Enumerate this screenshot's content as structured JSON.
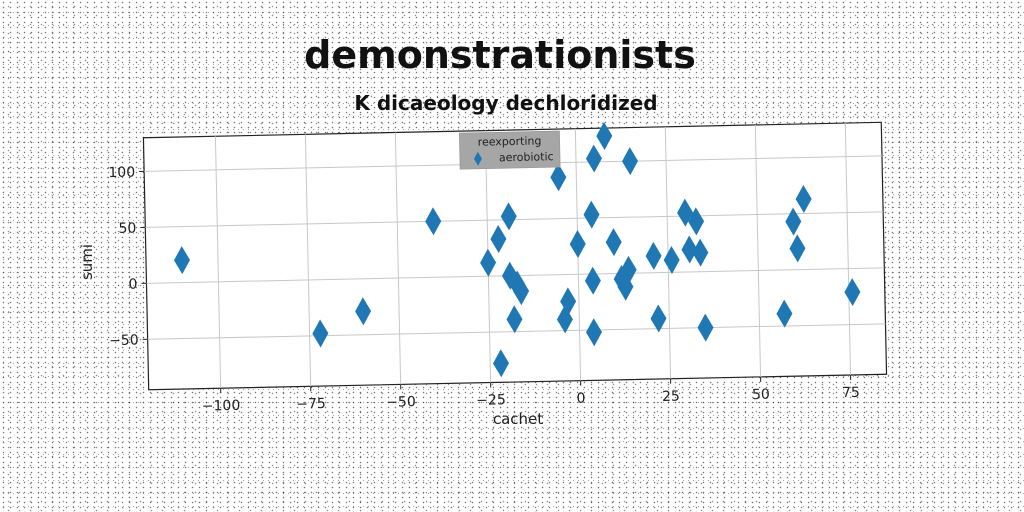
{
  "chart_data": {
    "type": "scatter",
    "title": "demonstrationists",
    "subtitle": "K dicaeology dechloridized",
    "xlabel": "cachet",
    "ylabel": "sumi",
    "xlim": [
      -120,
      85
    ],
    "ylim": [
      -95,
      130
    ],
    "xticks": [
      -100,
      -75,
      -50,
      -25,
      0,
      25,
      50,
      75
    ],
    "yticks": [
      -50,
      0,
      50,
      100
    ],
    "xtick_labels": [
      "−100",
      "−75",
      "−50",
      "−25",
      "0",
      "25",
      "50",
      "75"
    ],
    "ytick_labels": [
      "−50",
      "0",
      "50",
      "100"
    ],
    "grid": true,
    "legend": {
      "title": "reexporting",
      "placement": "top-center"
    },
    "marker": "thin-diamond",
    "series": [
      {
        "name": "aerobiotic",
        "color": "#1f77b4",
        "points": [
          [
            -110,
            20
          ],
          [
            -72,
            -48
          ],
          [
            -60,
            -29
          ],
          [
            -40,
            50
          ],
          [
            -25,
            12
          ],
          [
            -22,
            33
          ],
          [
            -22,
            -78
          ],
          [
            -19,
            53
          ],
          [
            -19,
            0
          ],
          [
            -18,
            -39
          ],
          [
            -17,
            -8
          ],
          [
            -16,
            -14
          ],
          [
            -5,
            87
          ],
          [
            -4,
            -40
          ],
          [
            -3,
            -24
          ],
          [
            0,
            27
          ],
          [
            4,
            -52
          ],
          [
            4,
            -6
          ],
          [
            4,
            53
          ],
          [
            5,
            103
          ],
          [
            8,
            123
          ],
          [
            10,
            28
          ],
          [
            12,
            -5
          ],
          [
            13,
            -12
          ],
          [
            14,
            3
          ],
          [
            15,
            100
          ],
          [
            21,
            15
          ],
          [
            22,
            -41
          ],
          [
            26,
            11
          ],
          [
            30,
            53
          ],
          [
            31,
            20
          ],
          [
            33,
            45
          ],
          [
            34,
            17
          ],
          [
            35,
            -50
          ],
          [
            57,
            -39
          ],
          [
            60,
            43
          ],
          [
            61,
            19
          ],
          [
            63,
            63
          ],
          [
            76,
            -21
          ]
        ]
      }
    ]
  },
  "colors": {
    "marker": "#1f77b4",
    "grid": "#c8c8c8",
    "legend_bg": "#a6a6a6"
  }
}
